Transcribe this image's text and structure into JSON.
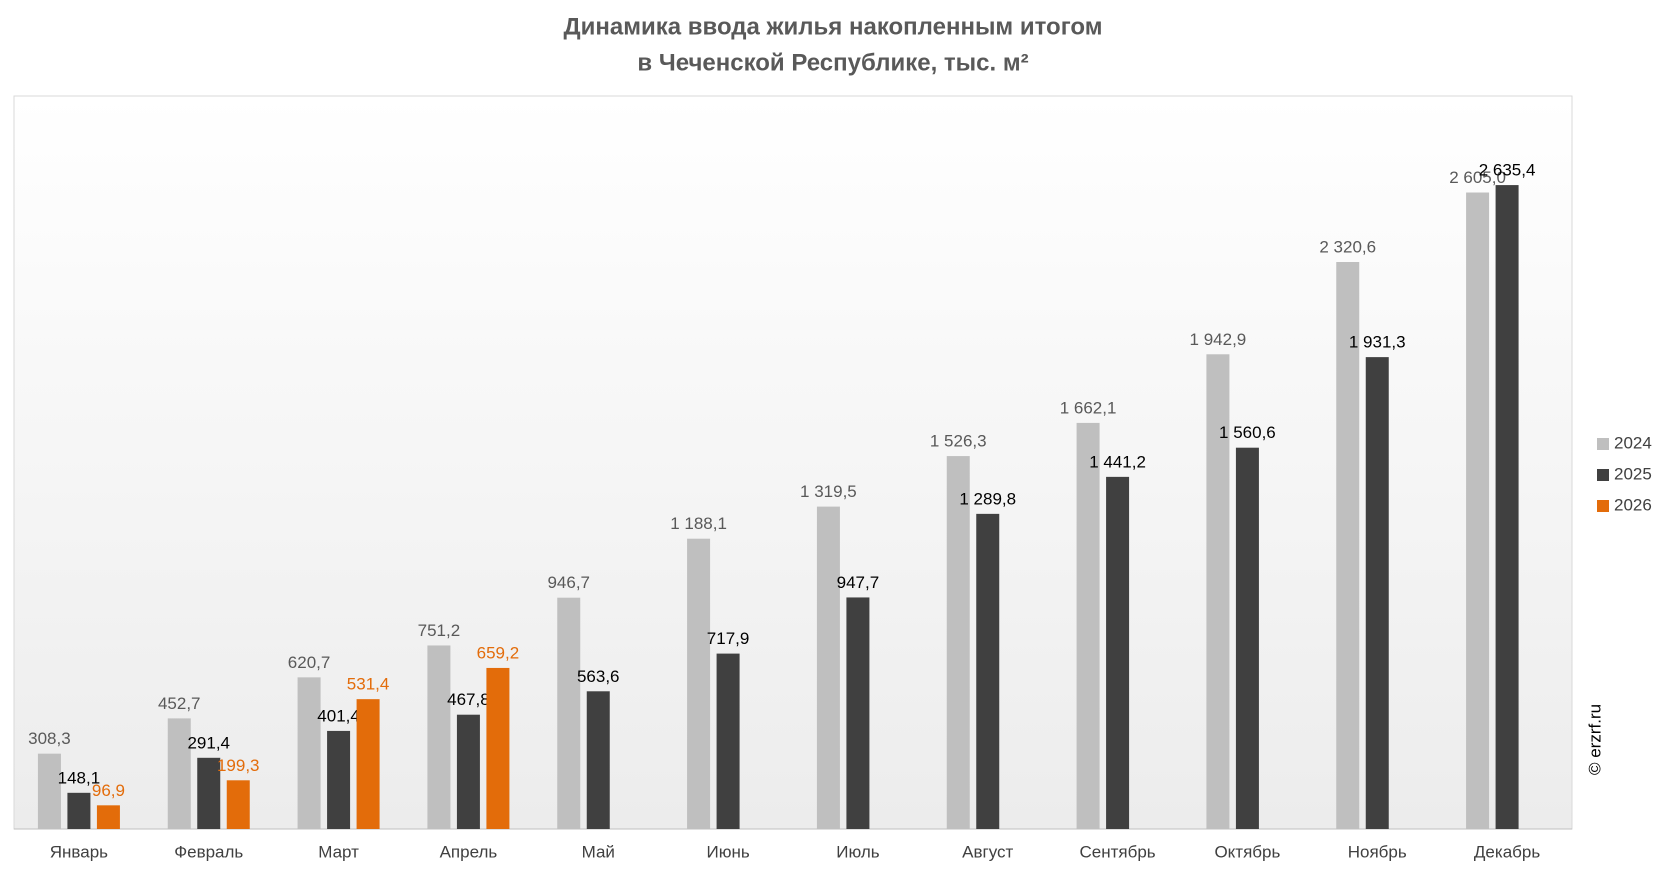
{
  "chart_data": {
    "type": "bar",
    "title": [
      "Динамика ввода жилья накопленным итогом",
      "в Чеченской Республике, тыс. м²"
    ],
    "categories": [
      "Январь",
      "Февраль",
      "Март",
      "Апрель",
      "Май",
      "Июнь",
      "Июль",
      "Август",
      "Сентябрь",
      "Октябрь",
      "Ноябрь",
      "Декабрь"
    ],
    "series": [
      {
        "name": "2024",
        "color": "#bfbfbf",
        "label_color": "#595959",
        "values": [
          308.3,
          452.7,
          620.7,
          751.2,
          946.7,
          1188.1,
          1319.5,
          1526.3,
          1662.1,
          1942.9,
          2320.6,
          2605.0
        ],
        "value_labels": [
          "308,3",
          "452,7",
          "620,7",
          "751,2",
          "946,7",
          "1 188,1",
          "1 319,5",
          "1 526,3",
          "1 662,1",
          "1 942,9",
          "2 320,6",
          "2 605,0"
        ]
      },
      {
        "name": "2025",
        "color": "#404040",
        "label_color": "#000000",
        "values": [
          148.1,
          291.4,
          401.4,
          467.8,
          563.6,
          717.9,
          947.7,
          1289.8,
          1441.2,
          1560.6,
          1931.3,
          2635.4
        ],
        "value_labels": [
          "148,1",
          "291,4",
          "401,4",
          "467,8",
          "563,6",
          "717,9",
          "947,7",
          "1 289,8",
          "1 441,2",
          "1 560,6",
          "1 931,3",
          "2 635,4"
        ]
      },
      {
        "name": "2026",
        "color": "#e36c0a",
        "label_color": "#e36c0a",
        "values": [
          96.9,
          199.3,
          531.4,
          659.2,
          null,
          null,
          null,
          null,
          null,
          null,
          null,
          null
        ],
        "value_labels": [
          "96,9",
          "199,3",
          "531,4",
          "659,2",
          null,
          null,
          null,
          null,
          null,
          null,
          null,
          null
        ]
      }
    ],
    "ylim": [
      0,
      3000
    ],
    "legend": "right",
    "watermark": "© erzrf.ru"
  }
}
